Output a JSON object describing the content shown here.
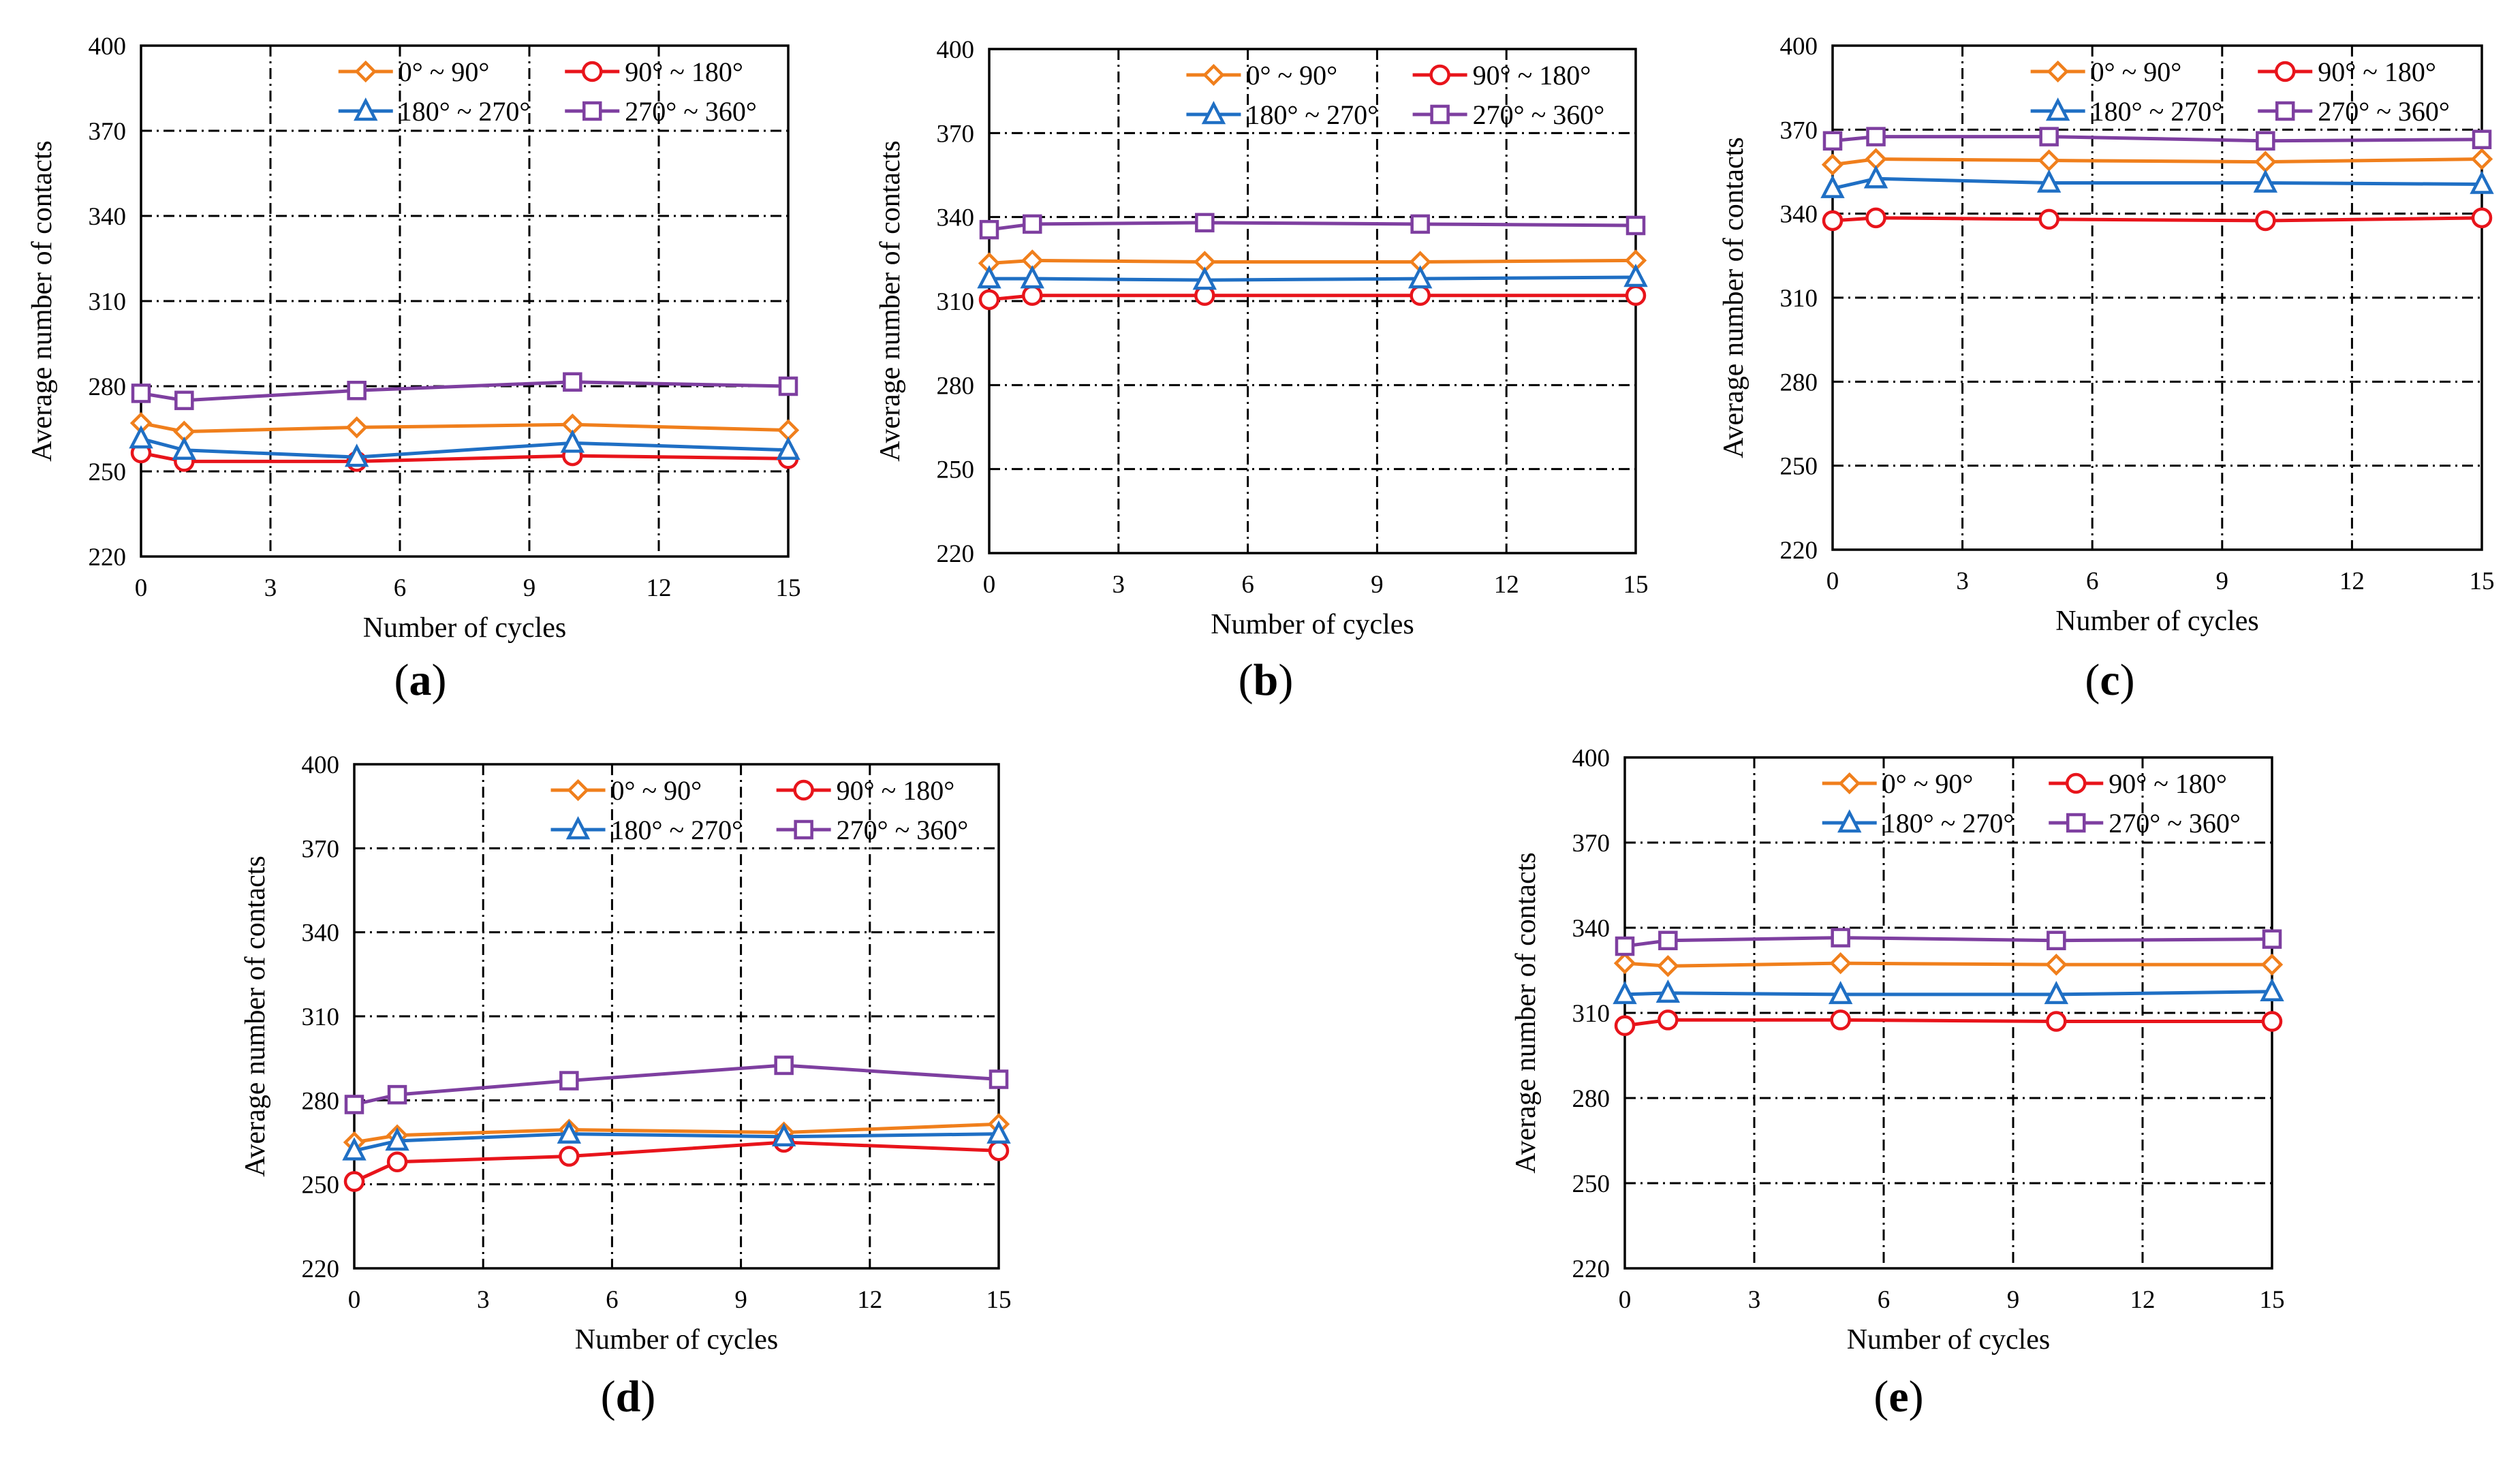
{
  "figure": {
    "x_axis_label": "Number of cycles",
    "y_axis_label": "Average number of contacts",
    "legend": [
      "0° ~ 90°",
      "90° ~ 180°",
      "180° ~ 270°",
      "270° ~ 360°"
    ],
    "series_colors": [
      "#f07f1c",
      "#e8141b",
      "#1f6fc4",
      "#7e3fa0"
    ],
    "series_markers": [
      "diamond-icon",
      "circle-icon",
      "triangle-icon",
      "square-icon"
    ]
  },
  "chart_data": [
    {
      "type": "line",
      "panel": "a",
      "title": "",
      "xlabel": "Number of cycles",
      "ylabel": "Average number of contacts",
      "x": [
        0,
        1,
        5,
        10,
        15
      ],
      "xlim": [
        0,
        15
      ],
      "xticks": [
        0,
        3,
        6,
        9,
        12,
        15
      ],
      "ylim": [
        220,
        400
      ],
      "yticks": [
        220,
        250,
        280,
        310,
        340,
        370,
        400
      ],
      "grid": true,
      "legend_position": "top-right",
      "series": [
        {
          "name": "0° ~ 90°",
          "values": [
            267,
            264,
            265.5,
            266.5,
            264.5
          ]
        },
        {
          "name": "90° ~ 180°",
          "values": [
            256.5,
            253.5,
            253.5,
            255.5,
            254.5
          ]
        },
        {
          "name": "180° ~ 270°",
          "values": [
            261.5,
            257.5,
            255,
            260,
            257.5
          ]
        },
        {
          "name": "270° ~ 360°",
          "values": [
            277.5,
            275,
            278.5,
            281.5,
            280
          ]
        }
      ]
    },
    {
      "type": "line",
      "panel": "b",
      "title": "",
      "xlabel": "Number of cycles",
      "ylabel": "Average number of contacts",
      "x": [
        0,
        1,
        5,
        10,
        15
      ],
      "xlim": [
        0,
        15
      ],
      "xticks": [
        0,
        3,
        6,
        9,
        12,
        15
      ],
      "ylim": [
        220,
        400
      ],
      "yticks": [
        220,
        250,
        280,
        310,
        340,
        370,
        400
      ],
      "grid": true,
      "legend_position": "top-right",
      "series": [
        {
          "name": "0° ~ 90°",
          "values": [
            323.5,
            324.5,
            324,
            324,
            324.5
          ]
        },
        {
          "name": "90° ~ 180°",
          "values": [
            310.5,
            312,
            312,
            312,
            312
          ]
        },
        {
          "name": "180° ~ 270°",
          "values": [
            318,
            318,
            317.5,
            318,
            318.5
          ]
        },
        {
          "name": "270° ~ 360°",
          "values": [
            335.5,
            337.5,
            338,
            337.5,
            337
          ]
        }
      ]
    },
    {
      "type": "line",
      "panel": "c",
      "title": "",
      "xlabel": "Number of cycles",
      "ylabel": "Average number of contacts",
      "x": [
        0,
        1,
        5,
        10,
        15
      ],
      "xlim": [
        0,
        15
      ],
      "xticks": [
        0,
        3,
        6,
        9,
        12,
        15
      ],
      "ylim": [
        220,
        400
      ],
      "yticks": [
        220,
        250,
        280,
        310,
        340,
        370,
        400
      ],
      "grid": true,
      "legend_position": "top-right",
      "series": [
        {
          "name": "0° ~ 90°",
          "values": [
            357.5,
            359.5,
            359,
            358.5,
            359.5
          ]
        },
        {
          "name": "90° ~ 180°",
          "values": [
            337.5,
            338.5,
            338,
            337.5,
            338.5
          ]
        },
        {
          "name": "180° ~ 270°",
          "values": [
            349,
            352.5,
            351,
            351,
            350.5
          ]
        },
        {
          "name": "270° ~ 360°",
          "values": [
            366,
            367.5,
            367.5,
            366,
            366.5
          ]
        }
      ]
    },
    {
      "type": "line",
      "panel": "d",
      "title": "",
      "xlabel": "Number of cycles",
      "ylabel": "Average number of contacts",
      "x": [
        0,
        1,
        5,
        10,
        15
      ],
      "xlim": [
        0,
        15
      ],
      "xticks": [
        0,
        3,
        6,
        9,
        12,
        15
      ],
      "ylim": [
        220,
        400
      ],
      "yticks": [
        220,
        250,
        280,
        310,
        340,
        370,
        400
      ],
      "grid": true,
      "legend_position": "top-right",
      "series": [
        {
          "name": "0° ~ 90°",
          "values": [
            265,
            267.5,
            269.5,
            268.5,
            271.5
          ]
        },
        {
          "name": "90° ~ 180°",
          "values": [
            251,
            258,
            260,
            265,
            262
          ]
        },
        {
          "name": "180° ~ 270°",
          "values": [
            262,
            265.5,
            268,
            267,
            268
          ]
        },
        {
          "name": "270° ~ 360°",
          "values": [
            278.5,
            282,
            287,
            292.5,
            287.5
          ]
        }
      ]
    },
    {
      "type": "line",
      "panel": "e",
      "title": "",
      "xlabel": "Number of cycles",
      "ylabel": "Average number of contacts",
      "x": [
        0,
        1,
        5,
        10,
        15
      ],
      "xlim": [
        0,
        15
      ],
      "xticks": [
        0,
        3,
        6,
        9,
        12,
        15
      ],
      "ylim": [
        220,
        400
      ],
      "yticks": [
        220,
        250,
        280,
        310,
        340,
        370,
        400
      ],
      "grid": true,
      "legend_position": "top-right",
      "series": [
        {
          "name": "0° ~ 90°",
          "values": [
            327.5,
            326.5,
            327.5,
            327,
            327
          ]
        },
        {
          "name": "90° ~ 180°",
          "values": [
            305.5,
            307.5,
            307.5,
            307,
            307
          ]
        },
        {
          "name": "180° ~ 270°",
          "values": [
            316.5,
            317,
            316.5,
            316.5,
            317.5
          ]
        },
        {
          "name": "270° ~ 360°",
          "values": [
            333.5,
            335.5,
            336.5,
            335.5,
            336
          ]
        }
      ]
    }
  ]
}
